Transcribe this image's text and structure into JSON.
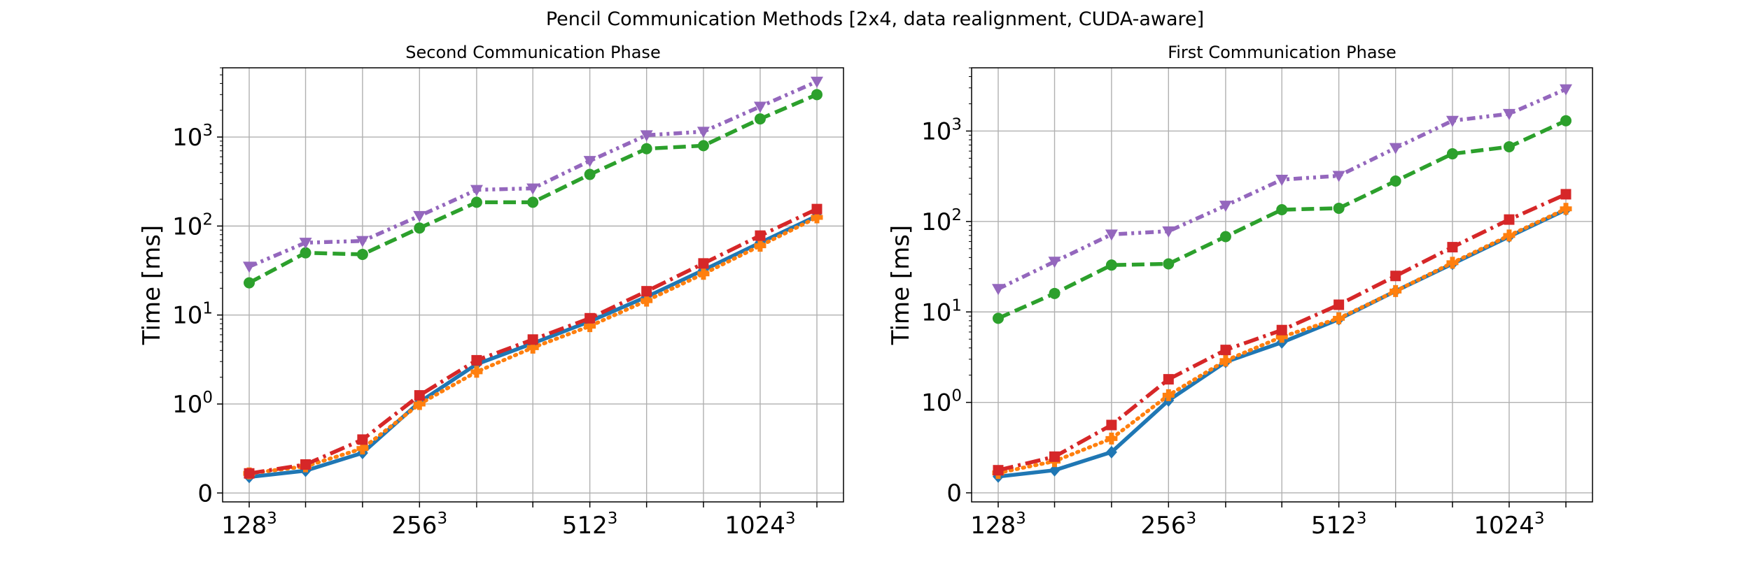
{
  "figure_title": "Pencil Communication Methods [2x4, data realignment, CUDA-aware]",
  "chart_data": [
    {
      "type": "line",
      "title": "Second Communication Phase",
      "ylabel": "Time [ms]",
      "xlabel": "",
      "yscale": "symlog",
      "linthresh": 1,
      "ylim": [
        -0.1,
        6000
      ],
      "grid": true,
      "legend": "none",
      "x": [
        128,
        161,
        203,
        256,
        323,
        406,
        512,
        645,
        813,
        1024,
        1290
      ],
      "xticks": [
        {
          "x": 128,
          "base": "128",
          "exp": "3"
        },
        {
          "x": 256,
          "base": "256",
          "exp": "3"
        },
        {
          "x": 512,
          "base": "512",
          "exp": "3"
        },
        {
          "x": 1024,
          "base": "1024",
          "exp": "3"
        }
      ],
      "yticks": [
        {
          "y": 0,
          "base": "0",
          "exp": ""
        },
        {
          "y": 1,
          "base": "10",
          "exp": "0"
        },
        {
          "y": 10,
          "base": "10",
          "exp": "1"
        },
        {
          "y": 100,
          "base": "10",
          "exp": "2"
        },
        {
          "y": 1000,
          "base": "10",
          "exp": "3"
        }
      ],
      "series": [
        {
          "color": "#1f77b4",
          "style": "solid",
          "marker": "diamond",
          "values": [
            0.18,
            0.25,
            0.45,
            1.05,
            2.8,
            4.8,
            8.5,
            16,
            32,
            65,
            130
          ]
        },
        {
          "color": "#ff7f0e",
          "style": "dotted",
          "marker": "plus",
          "values": [
            0.22,
            0.3,
            0.5,
            1.0,
            2.3,
            4.3,
            7.5,
            14.5,
            29,
            60,
            125
          ]
        },
        {
          "color": "#2ca02c",
          "style": "dashed",
          "marker": "circle",
          "values": [
            23,
            50,
            48,
            95,
            185,
            185,
            380,
            740,
            800,
            1600,
            3000
          ]
        },
        {
          "color": "#d62728",
          "style": "dashdot",
          "marker": "square",
          "values": [
            0.22,
            0.32,
            0.6,
            1.25,
            3.1,
            5.3,
            9.2,
            18.5,
            38,
            78,
            155
          ]
        },
        {
          "color": "#9467bd",
          "style": "dashdotdot",
          "marker": "triangle-down",
          "values": [
            35,
            65,
            68,
            130,
            255,
            265,
            540,
            1050,
            1150,
            2200,
            4200
          ]
        }
      ]
    },
    {
      "type": "line",
      "title": "First Communication Phase",
      "ylabel": "Time [ms]",
      "xlabel": "",
      "yscale": "symlog",
      "linthresh": 1,
      "ylim": [
        -0.1,
        5000
      ],
      "grid": true,
      "legend": "none",
      "x": [
        128,
        161,
        203,
        256,
        323,
        406,
        512,
        645,
        813,
        1024,
        1290
      ],
      "xticks": [
        {
          "x": 128,
          "base": "128",
          "exp": "3"
        },
        {
          "x": 256,
          "base": "256",
          "exp": "3"
        },
        {
          "x": 512,
          "base": "512",
          "exp": "3"
        },
        {
          "x": 1024,
          "base": "1024",
          "exp": "3"
        }
      ],
      "yticks": [
        {
          "y": 0,
          "base": "0",
          "exp": ""
        },
        {
          "y": 1,
          "base": "10",
          "exp": "0"
        },
        {
          "y": 10,
          "base": "10",
          "exp": "1"
        },
        {
          "y": 100,
          "base": "10",
          "exp": "2"
        },
        {
          "y": 1000,
          "base": "10",
          "exp": "3"
        }
      ],
      "series": [
        {
          "color": "#1f77b4",
          "style": "solid",
          "marker": "diamond",
          "values": [
            0.18,
            0.25,
            0.45,
            1.05,
            2.8,
            4.6,
            8.3,
            17,
            34,
            68,
            135
          ]
        },
        {
          "color": "#ff7f0e",
          "style": "dotted",
          "marker": "plus",
          "values": [
            0.22,
            0.35,
            0.6,
            1.2,
            2.9,
            5.3,
            8.5,
            17,
            35,
            70,
            138
          ]
        },
        {
          "color": "#2ca02c",
          "style": "dashed",
          "marker": "circle",
          "values": [
            8.5,
            16,
            33,
            34,
            68,
            135,
            140,
            280,
            560,
            670,
            1300
          ]
        },
        {
          "color": "#d62728",
          "style": "dashdot",
          "marker": "square",
          "values": [
            0.25,
            0.4,
            0.75,
            1.8,
            3.8,
            6.3,
            12,
            25,
            52,
            105,
            200
          ]
        },
        {
          "color": "#9467bd",
          "style": "dashdotdot",
          "marker": "triangle-down",
          "values": [
            18,
            36,
            72,
            78,
            150,
            290,
            320,
            650,
            1300,
            1550,
            2900
          ]
        }
      ]
    }
  ]
}
